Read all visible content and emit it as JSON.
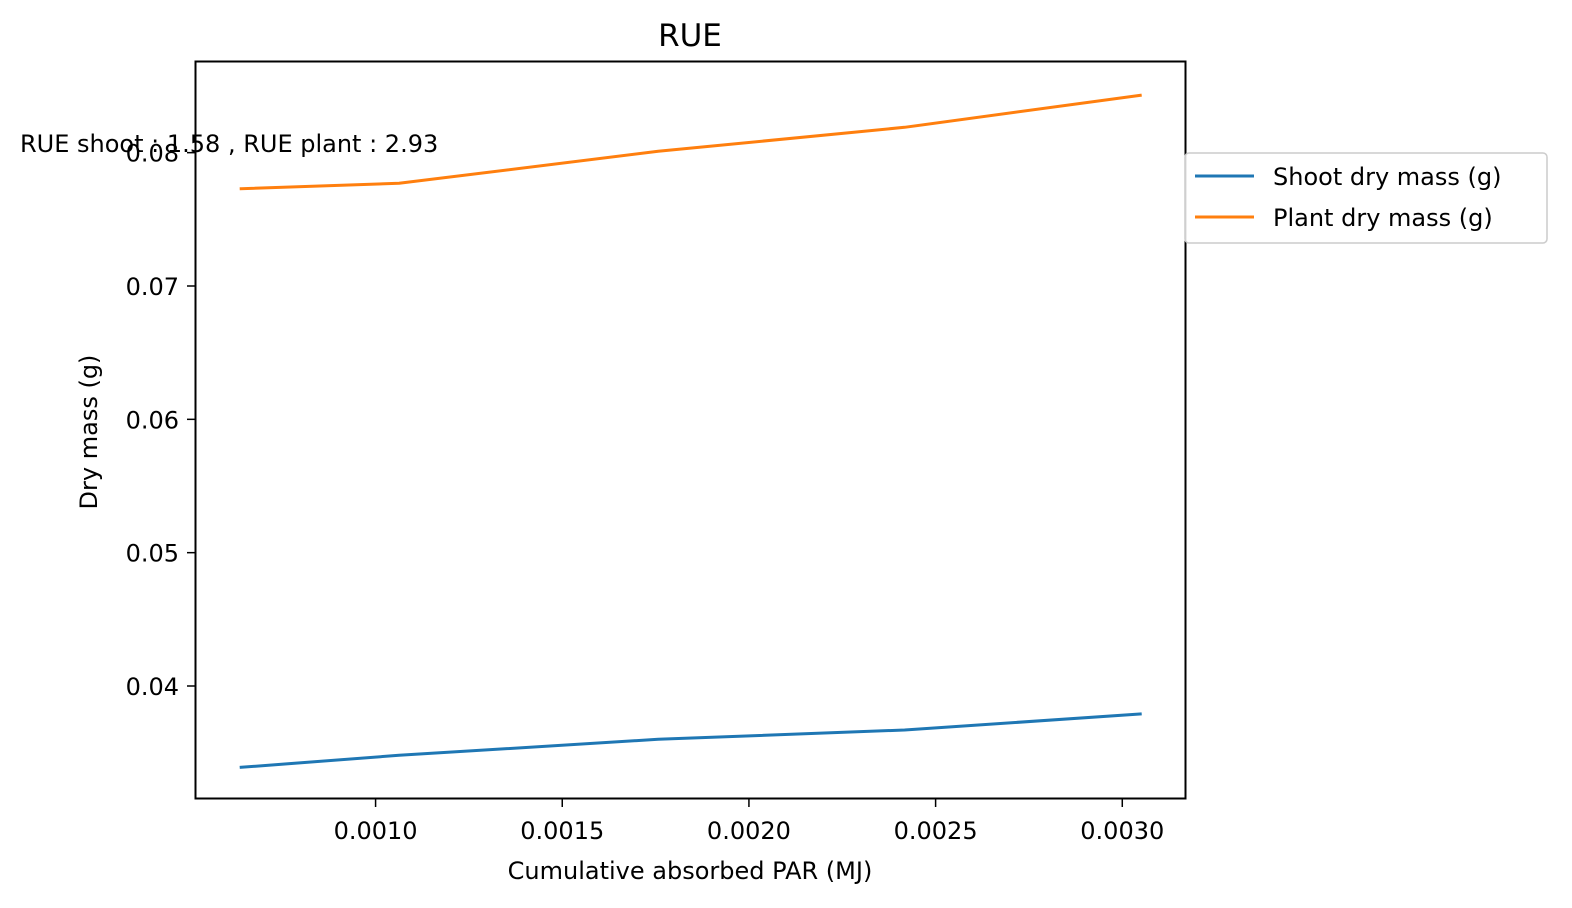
{
  "chart_data": {
    "type": "line",
    "title": "RUE",
    "xlabel": "Cumulative absorbed PAR (MJ)",
    "ylabel": "Dry mass (g)",
    "annotation": "RUE shoot : 1.58 , RUE plant : 2.93",
    "xlim": [
      0.000519,
      0.003168
    ],
    "ylim": [
      0.0316,
      0.0868
    ],
    "xticks": [
      0.001,
      0.0015,
      0.002,
      0.0025,
      0.003
    ],
    "xtick_labels": [
      "0.0010",
      "0.0015",
      "0.0020",
      "0.0025",
      "0.0030"
    ],
    "yticks": [
      0.04,
      0.05,
      0.06,
      0.07,
      0.08
    ],
    "ytick_labels": [
      "0.04",
      "0.05",
      "0.06",
      "0.07",
      "0.08"
    ],
    "grid": false,
    "legend_position": "right, outside the top-right of the plot area",
    "series": [
      {
        "name": "Shoot dry mass (g)",
        "color": "#1f77b4",
        "x": [
          0.00064,
          0.001063,
          0.001757,
          0.002417,
          0.003048
        ],
        "y": [
          0.0339,
          0.0348,
          0.036,
          0.0367,
          0.0379
        ]
      },
      {
        "name": "Plant dry mass (g)",
        "color": "#ff7f0e",
        "x": [
          0.00064,
          0.001063,
          0.001757,
          0.002417,
          0.003048
        ],
        "y": [
          0.0773,
          0.0777,
          0.0801,
          0.0819,
          0.0843
        ]
      }
    ]
  }
}
